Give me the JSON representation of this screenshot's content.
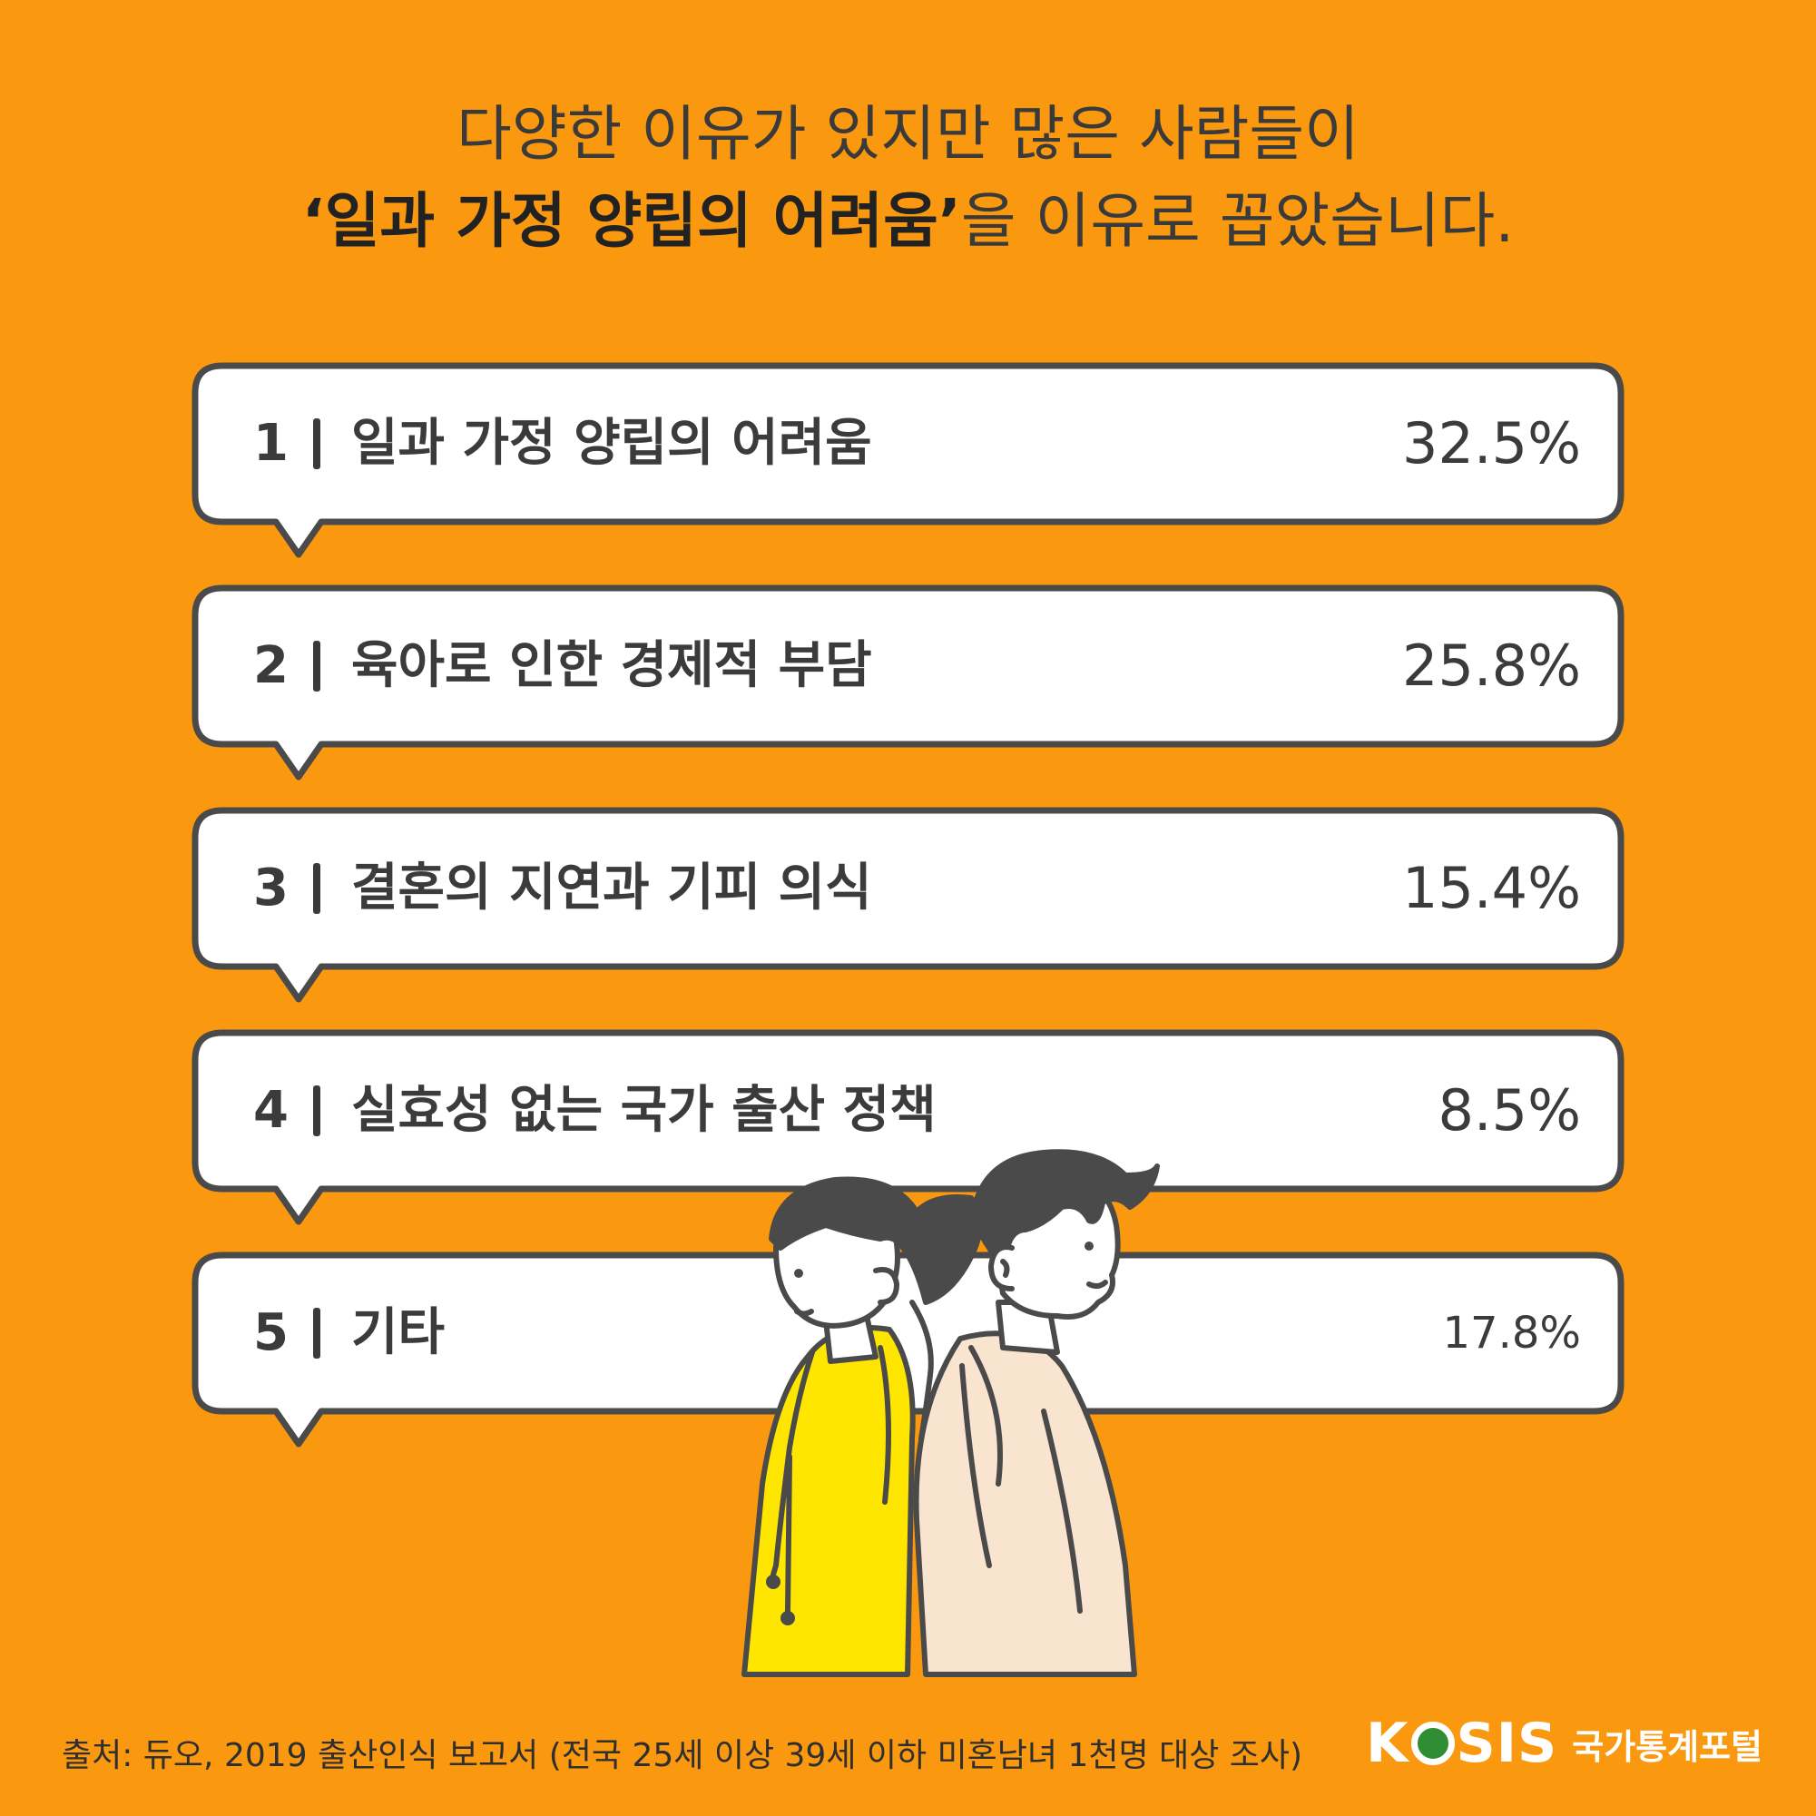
{
  "headline": {
    "line1": "다양한 이유가 있지만 많은 사람들이",
    "line2_highlight": "‘일과 가정 양립의 어려움’",
    "line2_rest": "을 이유로 꼽았습니다."
  },
  "items": [
    {
      "rank": "1",
      "label": "일과 가정 양립의 어려움",
      "value": "32.5%"
    },
    {
      "rank": "2",
      "label": "육아로 인한 경제적 부담",
      "value": "25.8%"
    },
    {
      "rank": "3",
      "label": "결혼의 지연과 기피 의식",
      "value": "15.4%"
    },
    {
      "rank": "4",
      "label": "실효성 없는 국가 출산 정책",
      "value": "8.5%"
    },
    {
      "rank": "5",
      "label": "기타",
      "value": "17.8%"
    }
  ],
  "source": "출처: 듀오, 2019 출산인식 보고서 (전국 25세 이상 39세 이하 미혼남녀 1천명 대상 조사)",
  "brand": {
    "logo_left": "K",
    "logo_right": "SIS",
    "portal": "국가통계포털"
  },
  "colors": {
    "background": "#FA990F",
    "bubble_fill": "#FFFFFF",
    "outline": "#4A4A4A",
    "woman_hoodie": "#FFE600",
    "man_jacket": "#F8E4CF"
  }
}
